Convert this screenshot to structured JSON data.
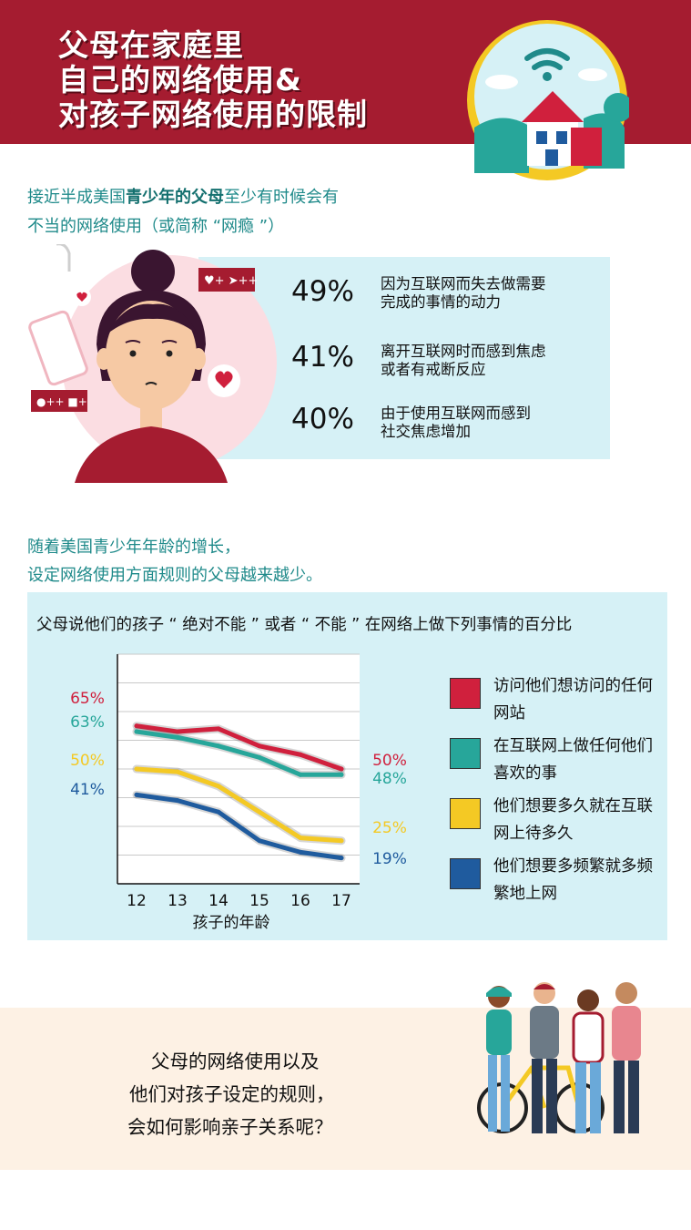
{
  "header": {
    "title_lines": [
      "父母在家庭里",
      "自己的网络使用&",
      "对孩子网络使用的限制"
    ]
  },
  "intro": {
    "line1_pre": "接近半成美国",
    "line1_strong": "青少年的父母",
    "line1_post": "至少有时候会有",
    "line2": "不当的网络使用（或简称 “网瘾 ”）"
  },
  "stats": [
    {
      "pct": "49%",
      "desc1": "因为互联网而失去做需要",
      "desc2": "完成的事情的动力"
    },
    {
      "pct": "41%",
      "desc1": "离开互联网时而感到焦虑",
      "desc2": "或者有戒断反应"
    },
    {
      "pct": "40%",
      "desc1": "由于使用互联网而感到",
      "desc2": "社交焦虑增加"
    }
  ],
  "section2": {
    "line1": "随着美国青少年年龄的增长，",
    "line2": "设定网络使用方面规则的父母越来越少。"
  },
  "icons": {
    "house": "house-wifi-icon",
    "girl": "worried-girl-icon",
    "teens": "teenagers-group-icon"
  },
  "chart_data": {
    "type": "line",
    "title": "父母说他们的孩子 “ 绝对不能 ” 或者 “ 不能 ” 在网络上做下列事情的百分比",
    "xlabel": "孩子的年龄",
    "ylabel": "",
    "x": [
      12,
      13,
      14,
      15,
      16,
      17
    ],
    "ylim": [
      10,
      90
    ],
    "grid": true,
    "legend_position": "right",
    "series": [
      {
        "name": "访问他们想访问的任何网站",
        "color": "#d0203d",
        "values": [
          65,
          63,
          64,
          58,
          55,
          50
        ],
        "start_label": "65%",
        "end_label": "50%"
      },
      {
        "name": "在互联网上做任何他们喜欢的事",
        "color": "#27a69a",
        "values": [
          63,
          61,
          58,
          54,
          48,
          48
        ],
        "start_label": "63%",
        "end_label": "48%"
      },
      {
        "name": "他们想要多久就在互联网上待多久",
        "color": "#f4c924",
        "values": [
          50,
          49,
          44,
          35,
          26,
          25
        ],
        "start_label": "50%",
        "end_label": "25%"
      },
      {
        "name": "他们想要多频繁就多频繁地上网",
        "color": "#1f5b9e",
        "values": [
          41,
          39,
          35,
          25,
          21,
          19
        ],
        "start_label": "41%",
        "end_label": "19%"
      }
    ]
  },
  "closing": {
    "line1": "父母的网络使用以及",
    "line2": "他们对孩子设定的规则，",
    "line3": "会如何影响亲子关系呢？"
  }
}
